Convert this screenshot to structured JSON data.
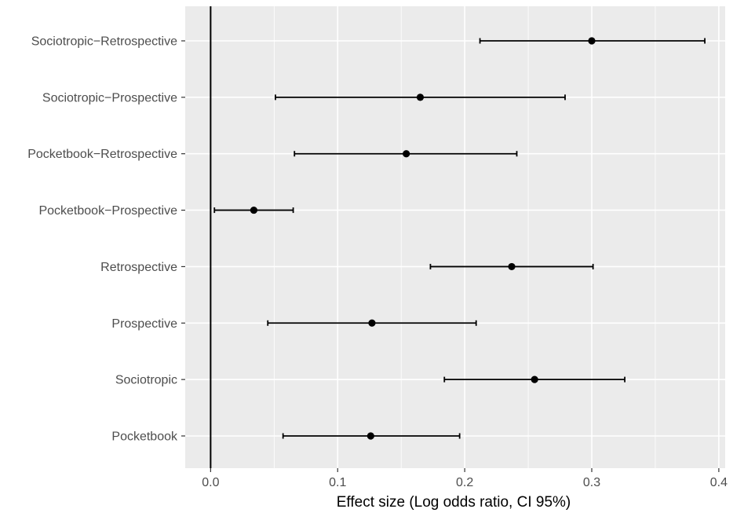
{
  "chart_data": {
    "type": "scatter",
    "subtype": "forest-plot-with-error-bars",
    "title": "",
    "xlabel": "Effect size (Log odds ratio, CI 95%)",
    "ylabel": "",
    "xlim": [
      -0.02,
      0.405
    ],
    "xticks": [
      0.0,
      0.1,
      0.2,
      0.3,
      0.4
    ],
    "xtick_labels": [
      "0.0",
      "0.1",
      "0.2",
      "0.3",
      "0.4"
    ],
    "reference_line_x": 0,
    "grid": true,
    "legend": "none",
    "colors": {
      "panel_background": "#ebebeb",
      "grid_major": "#ffffff",
      "points": "#000000",
      "tick_labels": "#4d4d4d"
    },
    "categories": [
      "Sociotropic−Retrospective",
      "Sociotropic−Prospective",
      "Pocketbook−Retrospective",
      "Pocketbook−Prospective",
      "Retrospective",
      "Prospective",
      "Sociotropic",
      "Pocketbook"
    ],
    "estimates": [
      0.3,
      0.165,
      0.154,
      0.034,
      0.237,
      0.127,
      0.255,
      0.126
    ],
    "ci_lower": [
      0.212,
      0.051,
      0.066,
      0.003,
      0.173,
      0.045,
      0.184,
      0.057
    ],
    "ci_upper": [
      0.389,
      0.279,
      0.241,
      0.065,
      0.301,
      0.209,
      0.326,
      0.196
    ]
  }
}
